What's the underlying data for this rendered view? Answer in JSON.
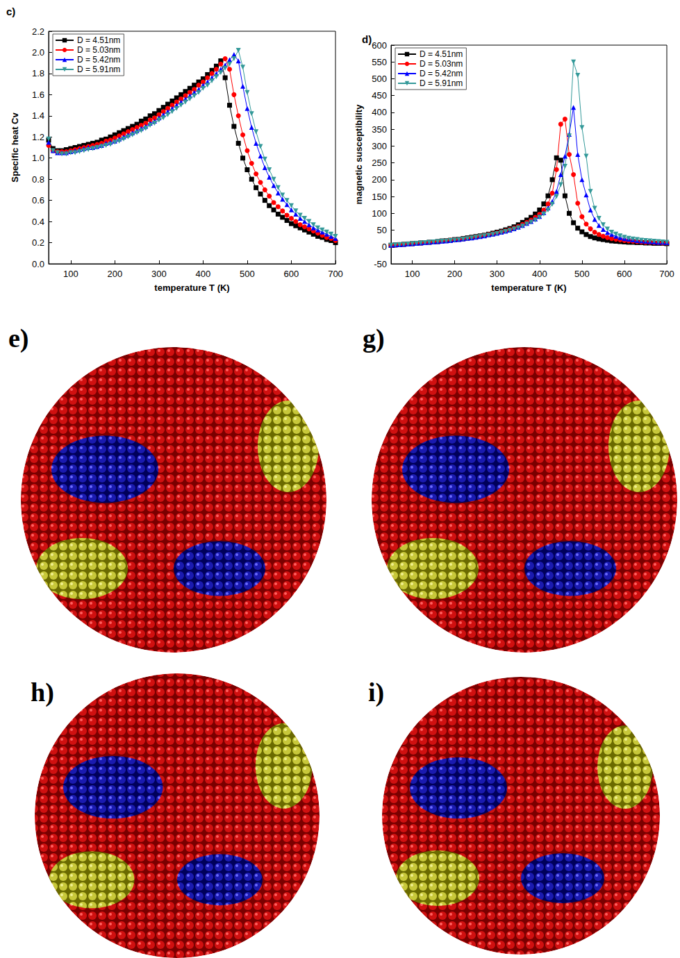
{
  "chart_data": [
    {
      "type": "line",
      "title": "c)",
      "xlabel": "temperature T (K)",
      "ylabel": "Specific heat Cv",
      "xlim": [
        50,
        700
      ],
      "xticks": [
        100,
        200,
        300,
        400,
        500,
        600,
        700
      ],
      "ylim": [
        0,
        2.2
      ],
      "yticks": [
        {
          "value": 0,
          "label": "0.0"
        },
        0.2,
        0.4,
        0.6,
        0.8,
        {
          "value": 1,
          "label": "1.0"
        },
        1.2,
        1.4,
        1.6,
        1.8,
        {
          "value": 2,
          "label": "2.0"
        },
        2.2
      ],
      "grid": false,
      "legend": "upper left",
      "x": [
        50,
        60,
        70,
        80,
        90,
        100,
        110,
        120,
        130,
        140,
        150,
        160,
        170,
        180,
        190,
        200,
        210,
        220,
        230,
        240,
        250,
        260,
        270,
        280,
        290,
        300,
        310,
        320,
        330,
        340,
        350,
        360,
        370,
        380,
        390,
        400,
        410,
        420,
        430,
        440,
        450,
        460,
        470,
        480,
        490,
        500,
        510,
        520,
        530,
        540,
        550,
        560,
        570,
        580,
        590,
        600,
        610,
        620,
        630,
        640,
        650,
        660,
        670,
        680,
        690,
        700
      ],
      "series": [
        {
          "name": "D = 4.51nm",
          "color": "#000000",
          "marker": "square",
          "values": [
            1.17,
            1.09,
            1.07,
            1.07,
            1.08,
            1.09,
            1.1,
            1.11,
            1.12,
            1.13,
            1.14,
            1.15,
            1.17,
            1.18,
            1.2,
            1.22,
            1.24,
            1.26,
            1.28,
            1.3,
            1.32,
            1.35,
            1.37,
            1.4,
            1.42,
            1.45,
            1.48,
            1.51,
            1.54,
            1.57,
            1.6,
            1.63,
            1.66,
            1.69,
            1.72,
            1.75,
            1.79,
            1.83,
            1.87,
            1.92,
            1.76,
            1.5,
            1.3,
            1.14,
            1.0,
            0.89,
            0.8,
            0.72,
            0.66,
            0.6,
            0.55,
            0.51,
            0.47,
            0.44,
            0.41,
            0.38,
            0.36,
            0.34,
            0.32,
            0.3,
            0.28,
            0.26,
            0.25,
            0.23,
            0.22,
            0.2
          ]
        },
        {
          "name": "D = 5.03nm",
          "color": "#ff0000",
          "marker": "circle",
          "values": [
            1.12,
            1.07,
            1.06,
            1.06,
            1.06,
            1.07,
            1.08,
            1.09,
            1.1,
            1.11,
            1.12,
            1.13,
            1.14,
            1.16,
            1.17,
            1.19,
            1.21,
            1.23,
            1.25,
            1.27,
            1.29,
            1.31,
            1.33,
            1.36,
            1.38,
            1.41,
            1.44,
            1.47,
            1.5,
            1.53,
            1.56,
            1.59,
            1.62,
            1.65,
            1.69,
            1.72,
            1.76,
            1.8,
            1.84,
            1.89,
            1.94,
            1.84,
            1.6,
            1.4,
            1.22,
            1.07,
            0.95,
            0.85,
            0.77,
            0.7,
            0.64,
            0.58,
            0.54,
            0.5,
            0.46,
            0.43,
            0.4,
            0.37,
            0.35,
            0.33,
            0.31,
            0.29,
            0.27,
            0.25,
            0.24,
            0.22
          ]
        },
        {
          "name": "D = 5.42nm",
          "color": "#0000ff",
          "marker": "triangle",
          "values": [
            1.15,
            1.07,
            1.05,
            1.05,
            1.05,
            1.06,
            1.07,
            1.08,
            1.09,
            1.1,
            1.1,
            1.11,
            1.12,
            1.14,
            1.15,
            1.16,
            1.18,
            1.2,
            1.22,
            1.24,
            1.26,
            1.28,
            1.3,
            1.33,
            1.35,
            1.38,
            1.41,
            1.44,
            1.47,
            1.5,
            1.53,
            1.56,
            1.59,
            1.62,
            1.65,
            1.69,
            1.72,
            1.76,
            1.8,
            1.84,
            1.88,
            1.93,
            1.98,
            1.92,
            1.68,
            1.47,
            1.29,
            1.14,
            1.02,
            0.91,
            0.82,
            0.74,
            0.67,
            0.61,
            0.56,
            0.51,
            0.47,
            0.43,
            0.4,
            0.37,
            0.34,
            0.32,
            0.3,
            0.28,
            0.26,
            0.24
          ]
        },
        {
          "name": "D = 5.91nm",
          "color": "#339999",
          "marker": "triangle-down",
          "values": [
            1.18,
            1.07,
            1.05,
            1.04,
            1.04,
            1.05,
            1.05,
            1.06,
            1.07,
            1.08,
            1.09,
            1.1,
            1.11,
            1.12,
            1.13,
            1.15,
            1.16,
            1.18,
            1.2,
            1.22,
            1.24,
            1.26,
            1.28,
            1.31,
            1.33,
            1.36,
            1.38,
            1.41,
            1.44,
            1.47,
            1.5,
            1.53,
            1.56,
            1.59,
            1.62,
            1.66,
            1.69,
            1.73,
            1.77,
            1.81,
            1.85,
            1.89,
            1.94,
            2.02,
            1.86,
            1.62,
            1.42,
            1.25,
            1.11,
            0.99,
            0.89,
            0.8,
            0.72,
            0.65,
            0.6,
            0.55,
            0.5,
            0.46,
            0.43,
            0.4,
            0.37,
            0.34,
            0.32,
            0.3,
            0.28,
            0.26
          ]
        }
      ]
    },
    {
      "type": "line",
      "title": "d)",
      "xlabel": "temperature T (K)",
      "ylabel": "magnetic susceptibility",
      "xlim": [
        50,
        700
      ],
      "xticks": [
        100,
        200,
        300,
        400,
        500,
        600,
        700
      ],
      "ylim": [
        -50,
        600
      ],
      "yticks": [
        -50,
        0,
        50,
        100,
        150,
        200,
        250,
        300,
        350,
        400,
        450,
        500,
        550,
        600
      ],
      "grid": false,
      "legend": "upper left",
      "x": [
        50,
        60,
        70,
        80,
        90,
        100,
        110,
        120,
        130,
        140,
        150,
        160,
        170,
        180,
        190,
        200,
        210,
        220,
        230,
        240,
        250,
        260,
        270,
        280,
        290,
        300,
        310,
        320,
        330,
        340,
        350,
        360,
        370,
        380,
        390,
        400,
        410,
        420,
        430,
        440,
        450,
        460,
        470,
        480,
        490,
        500,
        510,
        520,
        530,
        540,
        550,
        560,
        570,
        580,
        590,
        600,
        610,
        620,
        630,
        640,
        650,
        660,
        670,
        680,
        690,
        700
      ],
      "series": [
        {
          "name": "D = 4.51nm",
          "color": "#000000",
          "marker": "square",
          "values": [
            5,
            6,
            7,
            8,
            9,
            10,
            11,
            12,
            13,
            14,
            15,
            16,
            18,
            19,
            20,
            22,
            23,
            25,
            27,
            29,
            31,
            33,
            35,
            38,
            41,
            44,
            47,
            51,
            55,
            60,
            66,
            73,
            80,
            88,
            98,
            110,
            128,
            152,
            200,
            265,
            258,
            152,
            100,
            72,
            56,
            45,
            37,
            31,
            27,
            24,
            22,
            20,
            18,
            17,
            16,
            15,
            14,
            14,
            13,
            13,
            12,
            12,
            11,
            11,
            11,
            10
          ]
        },
        {
          "name": "D = 5.03nm",
          "color": "#ff0000",
          "marker": "circle",
          "values": [
            5,
            6,
            7,
            8,
            9,
            10,
            11,
            12,
            13,
            14,
            15,
            16,
            17,
            19,
            20,
            21,
            23,
            24,
            26,
            28,
            30,
            32,
            34,
            37,
            39,
            42,
            45,
            48,
            52,
            56,
            61,
            67,
            73,
            80,
            88,
            97,
            110,
            128,
            160,
            230,
            365,
            380,
            275,
            215,
            130,
            90,
            68,
            54,
            44,
            37,
            32,
            28,
            25,
            23,
            21,
            19,
            18,
            17,
            16,
            15,
            14,
            14,
            13,
            13,
            12,
            12
          ]
        },
        {
          "name": "D = 5.42nm",
          "color": "#0000ff",
          "marker": "triangle",
          "values": [
            5,
            6,
            7,
            8,
            9,
            10,
            11,
            12,
            13,
            14,
            15,
            16,
            17,
            18,
            19,
            21,
            22,
            24,
            26,
            27,
            29,
            31,
            33,
            36,
            38,
            41,
            44,
            47,
            50,
            54,
            59,
            64,
            70,
            76,
            83,
            91,
            102,
            116,
            135,
            165,
            215,
            270,
            335,
            415,
            275,
            200,
            155,
            110,
            82,
            64,
            52,
            43,
            37,
            32,
            28,
            25,
            23,
            21,
            19,
            18,
            17,
            16,
            15,
            14,
            14,
            13
          ]
        },
        {
          "name": "D = 5.91nm",
          "color": "#339999",
          "marker": "triangle-down",
          "values": [
            5,
            6,
            7,
            8,
            9,
            10,
            11,
            12,
            13,
            14,
            15,
            16,
            17,
            18,
            19,
            20,
            22,
            23,
            25,
            27,
            29,
            31,
            33,
            35,
            37,
            40,
            43,
            46,
            49,
            53,
            57,
            62,
            68,
            74,
            80,
            88,
            98,
            110,
            127,
            150,
            185,
            240,
            330,
            550,
            510,
            355,
            270,
            165,
            115,
            85,
            66,
            53,
            44,
            38,
            33,
            29,
            26,
            24,
            22,
            20,
            19,
            18,
            17,
            16,
            15,
            14
          ]
        }
      ]
    }
  ],
  "panels": [
    {
      "label": "e)"
    },
    {
      "label": "g)"
    },
    {
      "label": "h)"
    },
    {
      "label": "i)"
    }
  ]
}
